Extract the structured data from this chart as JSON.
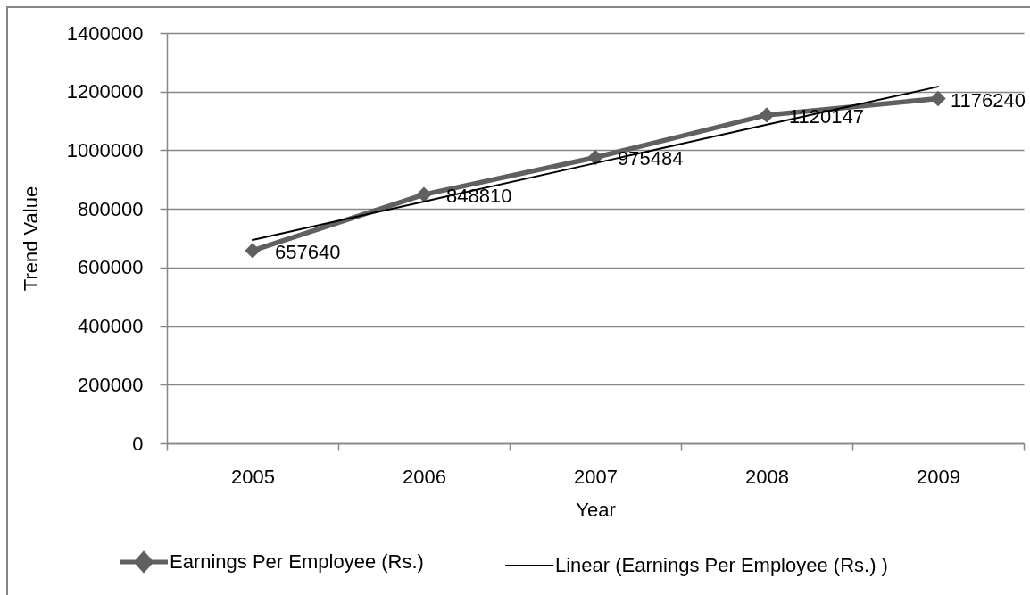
{
  "chart_data": {
    "type": "line",
    "xlabel": "Year",
    "ylabel": "Trend Value",
    "categories": [
      "2005",
      "2006",
      "2007",
      "2008",
      "2009"
    ],
    "series": [
      {
        "name": "Earnings  Per  Employee (Rs.)",
        "color": "#606060",
        "marker": "diamond",
        "values": [
          657640,
          848810,
          975484,
          1120147,
          1176240
        ],
        "value_labels": [
          "657640",
          "848810",
          "975484",
          "1120147",
          "1176240"
        ]
      },
      {
        "name": "Linear (Earnings  Per  Employee (Rs.) )",
        "type": "line",
        "color": "#000000",
        "values": [
          694000,
          825000,
          956000,
          1087000,
          1217000
        ]
      }
    ],
    "ylim": [
      0,
      1400000
    ],
    "yticks": [
      0,
      200000,
      400000,
      600000,
      800000,
      1000000,
      1200000,
      1400000
    ],
    "grid": "y",
    "legend": "bottom"
  }
}
